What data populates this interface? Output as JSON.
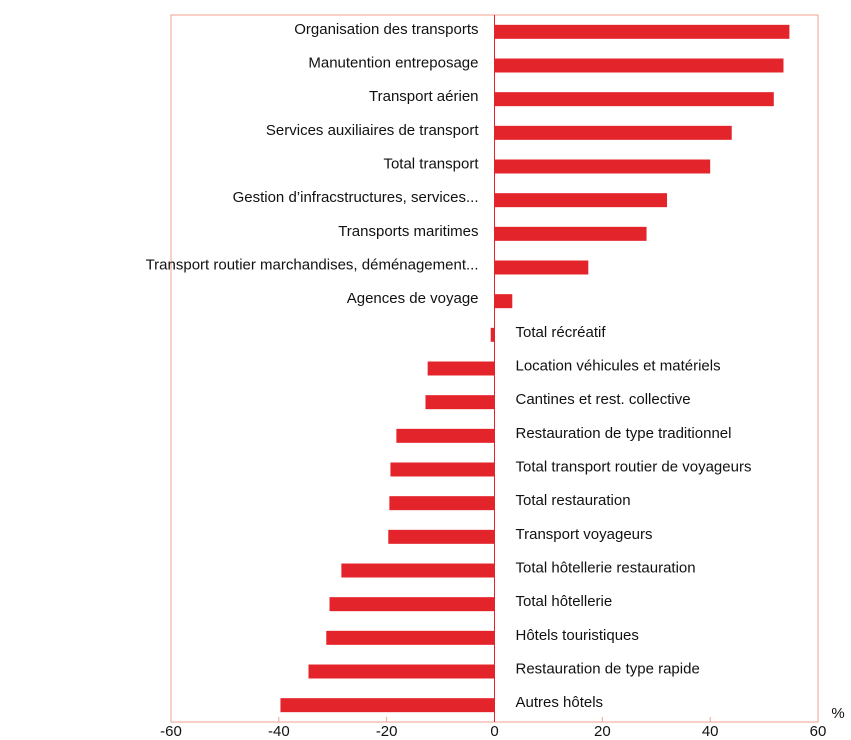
{
  "chart_data": {
    "type": "barh",
    "x_label": "%",
    "categories": [
      "Organisation des transports",
      "Manutention entreposage",
      "Transport aérien",
      "Services auxiliaires de transport",
      "Total transport",
      "Gestion d’infracstructures, services...",
      "Transports maritimes",
      "Transport routier marchandises, déménagement...",
      "Agences de voyage",
      "Total récréatif",
      "Location véhicules et matériels",
      "Cantines et rest. collective",
      "Restauration de type traditionnel",
      "Total transport routier de voyageurs",
      "Total restauration",
      "Transport voyageurs",
      "Total hôtellerie restauration",
      "Total hôtellerie",
      "Hôtels touristiques",
      "Restauration de type rapide",
      "Autres hôtels"
    ],
    "values": [
      54.7,
      53.6,
      51.8,
      44,
      40,
      32,
      28.2,
      17.4,
      3.3,
      -0.7,
      -12.4,
      -12.8,
      -18.2,
      -19.3,
      -19.5,
      -19.7,
      -28.4,
      -30.6,
      -31.2,
      -34.5,
      -39.7
    ],
    "color": "#e3242b",
    "xlim": [
      -60,
      60
    ],
    "xticks": [
      -60,
      -40,
      -20,
      0,
      20,
      40,
      60
    ]
  }
}
